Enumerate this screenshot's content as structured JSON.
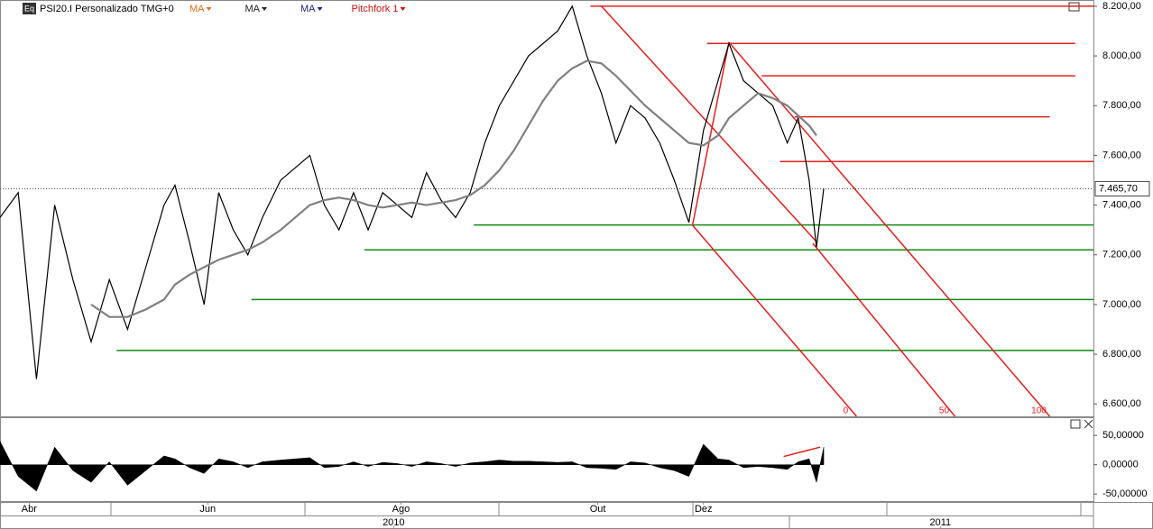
{
  "header": {
    "studies": [
      {
        "label": "MA",
        "color": "#e07020"
      },
      {
        "label": "MA",
        "color": "#222222"
      },
      {
        "label": "MA",
        "color": "#23237a"
      },
      {
        "label": "Pitchfork 1",
        "color": "#d01010"
      }
    ]
  },
  "chart_data": [
    {
      "type": "line",
      "x": [
        0,
        5,
        10,
        15,
        20,
        25,
        30,
        35,
        40,
        45,
        48,
        52,
        56,
        60,
        64,
        68,
        72,
        77,
        81,
        85,
        89,
        93,
        97,
        101,
        105,
        109,
        113,
        117,
        121,
        125,
        129,
        133,
        137,
        141,
        145,
        149,
        153,
        157,
        161,
        165,
        169,
        173,
        177,
        181,
        185,
        189,
        193,
        197,
        200,
        204,
        208,
        212,
        216,
        219,
        222,
        224,
        226
      ],
      "series": [
        {
          "name": "PSI20.I Personalizado TMG+0",
          "color": "#000000",
          "values": [
            7350,
            7450,
            6700,
            7400,
            7100,
            6850,
            7100,
            6900,
            7150,
            7400,
            7480,
            7250,
            7000,
            7450,
            7300,
            7200,
            7350,
            7500,
            7550,
            7600,
            7400,
            7300,
            7450,
            7300,
            7450,
            7400,
            7350,
            7530,
            7420,
            7350,
            7450,
            7650,
            7800,
            7900,
            8000,
            8050,
            8100,
            8200,
            8000,
            7850,
            7650,
            7800,
            7750,
            7650,
            7500,
            7330,
            7700,
            7900,
            8050,
            7900,
            7850,
            7800,
            7650,
            7750,
            7500,
            7230,
            7466
          ]
        },
        {
          "color": "#808080",
          "values": [
            null,
            null,
            null,
            null,
            null,
            7000,
            6950,
            6950,
            6980,
            7020,
            7080,
            7120,
            7150,
            7180,
            7200,
            7220,
            7250,
            7300,
            7350,
            7400,
            7420,
            7430,
            7420,
            7400,
            7390,
            7400,
            7410,
            7400,
            7410,
            7420,
            7440,
            7480,
            7540,
            7620,
            7720,
            7820,
            7900,
            7950,
            7980,
            7970,
            7920,
            7860,
            7800,
            7750,
            7700,
            7650,
            7640,
            7680,
            7750,
            7800,
            7850,
            7830,
            7800,
            7760,
            7720,
            7680,
            null
          ]
        }
      ],
      "xlim": [
        0,
        300
      ],
      "ylim": [
        6550,
        8225
      ],
      "yticks": [
        {
          "value": 6600,
          "label": "6.600,00"
        },
        {
          "value": 6800,
          "label": "6.800,00"
        },
        {
          "value": 7000,
          "label": "7.000,00"
        },
        {
          "value": 7200,
          "label": "7.200,00"
        },
        {
          "value": 7400,
          "label": "7.400,00"
        },
        {
          "value": 7600,
          "label": "7.600,00"
        },
        {
          "value": 7800,
          "label": "7.800,00"
        },
        {
          "value": 8000,
          "label": "8.000,00"
        },
        {
          "value": 8200,
          "label": "8.200,00"
        }
      ],
      "xticks": [
        {
          "value": 8,
          "label": "Abr"
        },
        {
          "value": 57,
          "label": "Jun"
        },
        {
          "value": 110,
          "label": "Ago"
        },
        {
          "value": 164,
          "label": "Out"
        },
        {
          "value": 193,
          "label": "Dez"
        }
      ],
      "year_ticks": [
        {
          "value": 108,
          "label": "2010"
        },
        {
          "value": 258,
          "label": "2011"
        }
      ],
      "levels": [
        {
          "value": 8200,
          "x": [
            162,
            300
          ],
          "color": "#e02020"
        },
        {
          "value": 8050,
          "x": [
            194,
            295
          ],
          "color": "#e02020"
        },
        {
          "value": 7920,
          "x": [
            209,
            295
          ],
          "color": "#e02020"
        },
        {
          "value": 7755,
          "x": [
            218,
            288
          ],
          "color": "#e02020"
        },
        {
          "value": 7575,
          "x": [
            214,
            300
          ],
          "color": "#e02020"
        },
        {
          "value": 7320,
          "x": [
            130,
            300
          ],
          "color": "#138a13"
        },
        {
          "value": 7220,
          "x": [
            100,
            300
          ],
          "color": "#138a13"
        },
        {
          "value": 7020,
          "x": [
            69,
            300
          ],
          "color": "#138a13"
        },
        {
          "value": 6815,
          "x": [
            32,
            300
          ],
          "color": "#138a13"
        }
      ],
      "trendlines": [
        {
          "x": [
            190,
            235
          ],
          "y": [
            7319,
            6550
          ],
          "color": "#e02020"
        },
        {
          "x": [
            223,
            262
          ],
          "y": [
            7246,
            6550
          ],
          "color": "#e02020"
        },
        {
          "x": [
            200,
            288
          ],
          "y": [
            8055,
            6550
          ],
          "color": "#e02020"
        },
        {
          "x": [
            165,
            224
          ],
          "y": [
            8200,
            7253
          ],
          "color": "#e02020"
        },
        {
          "x": [
            190,
            200
          ],
          "y": [
            7319,
            8055
          ],
          "color": "#e02020"
        }
      ],
      "pitchfork_labels": [
        "0",
        "50",
        "100"
      ],
      "last": {
        "value": 7465.7,
        "label": "7.465,70"
      }
    },
    {
      "type": "area",
      "x": [
        0,
        5,
        10,
        15,
        20,
        25,
        30,
        35,
        40,
        45,
        48,
        52,
        56,
        60,
        64,
        68,
        72,
        77,
        81,
        85,
        89,
        93,
        97,
        101,
        105,
        109,
        113,
        117,
        121,
        125,
        129,
        133,
        137,
        141,
        145,
        149,
        153,
        157,
        161,
        165,
        169,
        173,
        177,
        181,
        185,
        189,
        193,
        197,
        200,
        204,
        208,
        212,
        216,
        219,
        222,
        224,
        226
      ],
      "series": [
        {
          "color": "#000000",
          "values": [
            40,
            -20,
            -45,
            30,
            -10,
            -30,
            5,
            -35,
            -10,
            15,
            10,
            -5,
            -15,
            10,
            5,
            -5,
            5,
            8,
            10,
            12,
            -5,
            -3,
            5,
            -3,
            4,
            2,
            -3,
            5,
            2,
            -3,
            3,
            5,
            8,
            6,
            6,
            5,
            4,
            5,
            -5,
            -6,
            -8,
            5,
            3,
            -5,
            -10,
            -20,
            35,
            10,
            8,
            -5,
            -3,
            -5,
            -8,
            5,
            10,
            -30,
            30
          ]
        }
      ],
      "xlim": [
        0,
        300
      ],
      "ylim": [
        -62,
        81
      ],
      "yticks": [
        {
          "value": -50,
          "label": "-50,00000"
        },
        {
          "value": 0,
          "label": "0,00000"
        },
        {
          "value": 50,
          "label": "50,00000"
        }
      ],
      "trendlines": [
        {
          "x": [
            215,
            225
          ],
          "y": [
            14,
            30
          ],
          "color": "#e02020"
        }
      ]
    }
  ]
}
